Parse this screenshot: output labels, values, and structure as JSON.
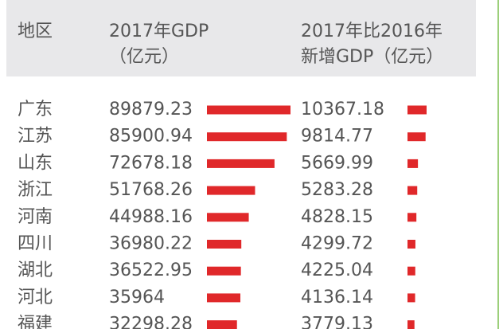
{
  "header": [
    [
      "地区"
    ],
    [
      "2017年GDP",
      "（亿元）"
    ],
    [
      "2017年比2016年",
      "新增GDP（亿元）"
    ]
  ],
  "rows": [
    [
      "广东",
      89879.23,
      10367.18
    ],
    [
      "江苏",
      85900.94,
      9814.77
    ],
    [
      "山东",
      72678.18,
      5669.99
    ],
    [
      "浙江",
      51768.26,
      5283.28
    ],
    [
      "河南",
      44988.16,
      4828.15
    ],
    [
      "四川",
      36980.22,
      4299.72
    ],
    [
      "湖北",
      36522.95,
      4225.04
    ],
    [
      "河北",
      35964,
      4136.14
    ],
    [
      "福建",
      32298.28,
      3779.13
    ]
  ],
  "bar_color": "#e0282a"
}
